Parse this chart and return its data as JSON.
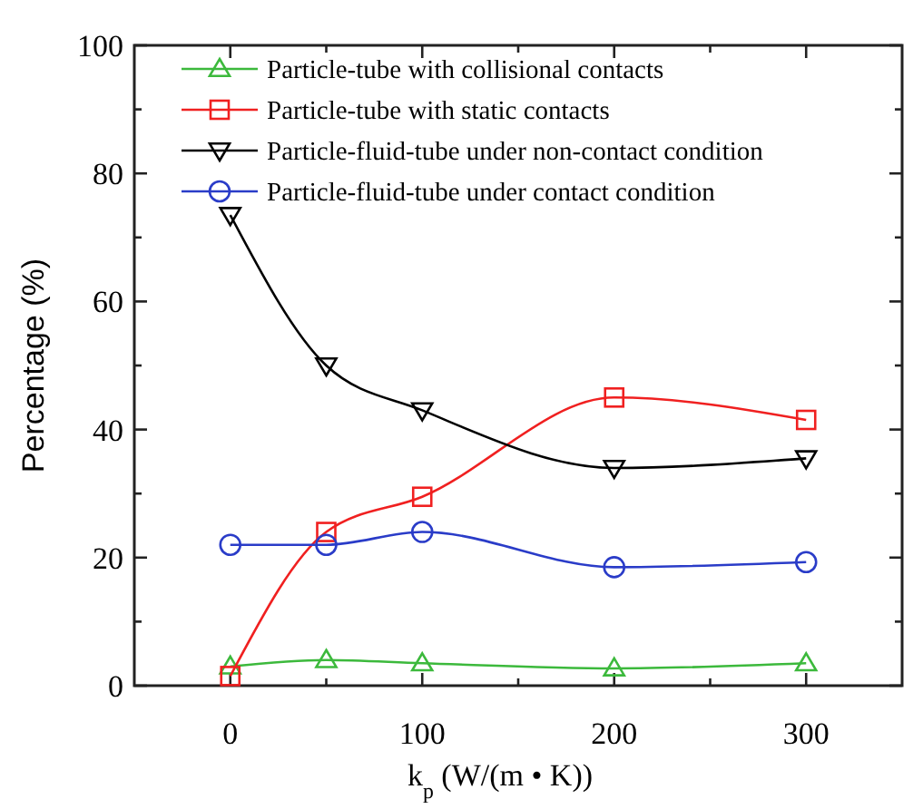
{
  "chart_data": {
    "type": "line",
    "xlabel": "k$_{p}$ (W/(m • K))",
    "ylabel": "Percentage (%)",
    "xlim": [
      -50,
      350
    ],
    "xticks": [
      0,
      {
        "value": 50,
        "label": null
      },
      100,
      {
        "value": 150,
        "label": null
      },
      200,
      {
        "value": 250,
        "label": null
      },
      300
    ],
    "ylim": [
      0,
      100
    ],
    "yticks": [
      0,
      {
        "value": 10,
        "label": null
      },
      20,
      {
        "value": 30,
        "label": null
      },
      40,
      {
        "value": 50,
        "label": null
      },
      60,
      {
        "value": 70,
        "label": null
      },
      80,
      {
        "value": 90,
        "label": null
      },
      100
    ],
    "x": [
      0,
      50,
      100,
      200,
      300
    ],
    "grid": false,
    "legend": "top left",
    "series": [
      {
        "name": "Particle-tube with collisional contacts",
        "color": "#3cb93c",
        "marker": "triangle",
        "values": [
          3,
          4,
          3.5,
          2.7,
          3.5
        ]
      },
      {
        "name": "Particle-tube with static contacts",
        "color": "#f02020",
        "marker": "square",
        "values": [
          1.5,
          24,
          29.5,
          45,
          41.5
        ]
      },
      {
        "name": "Particle-fluid-tube under non-contact condition",
        "color": "#000000",
        "marker": "triangle-down",
        "values": [
          73.5,
          50,
          43,
          34,
          35.5
        ]
      },
      {
        "name": "Particle-fluid-tube under contact condition",
        "color": "#2a3cc8",
        "marker": "circle",
        "values": [
          22,
          22,
          24,
          18.5,
          19.3
        ]
      }
    ]
  }
}
